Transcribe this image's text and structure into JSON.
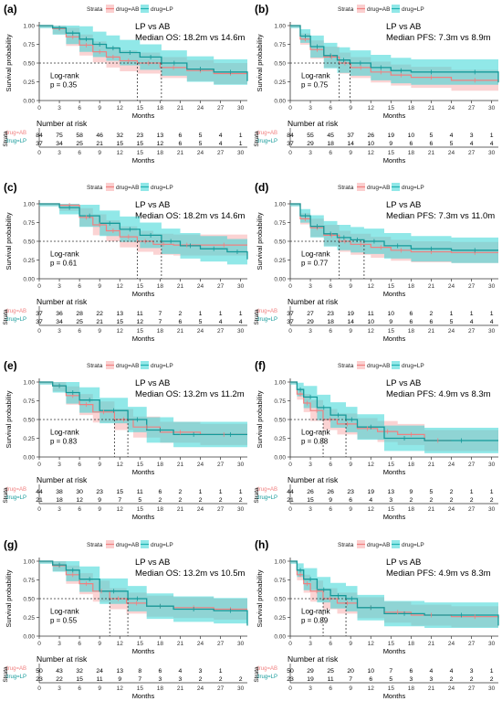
{
  "legend": {
    "title": "Strata",
    "series": [
      {
        "name": "drug=AB",
        "color": "#f08080"
      },
      {
        "name": "drug=LP",
        "color": "#1fb2b2"
      }
    ]
  },
  "colors": {
    "ab_line": "#f08080",
    "ab_band": "#f7a7a7",
    "lp_line": "#159a9a",
    "lp_band": "#36d5d5"
  },
  "common": {
    "ylabel": "Survival probability",
    "xlabel": "Months",
    "yticks": [
      "0.00",
      "0.25",
      "0.50",
      "0.75",
      "1.00"
    ],
    "xticks": [
      "0",
      "3",
      "6",
      "9",
      "12",
      "15",
      "18",
      "21",
      "24",
      "27",
      "30"
    ],
    "risk_title": "Number at risk",
    "risk_axis_label": "Strata",
    "risk_xticks": [
      "0",
      "3",
      "6",
      "9",
      "12",
      "15",
      "18",
      "21",
      "24",
      "27",
      "30"
    ],
    "risk_rows": [
      "drug=AB",
      "drug=LP"
    ]
  },
  "panels": [
    {
      "label": "(a)",
      "title": "LP vs AB",
      "median_text": "Median OS: 18.2m vs 14.6m",
      "logrank": "Log-rank",
      "p": "p = 0.35",
      "medians": [
        14.6,
        18.2
      ],
      "risk_ab": [
        "84",
        "75",
        "58",
        "46",
        "32",
        "23",
        "13",
        "6",
        "5",
        "4",
        "1"
      ],
      "risk_lp": [
        "37",
        "34",
        "25",
        "21",
        "15",
        "15",
        "12",
        "6",
        "5",
        "4",
        "1"
      ]
    },
    {
      "label": "(b)",
      "title": "LP vs AB",
      "median_text": "Median PFS: 7.3m vs 8.9m",
      "logrank": "Log-rank",
      "p": "p = 0.75",
      "medians": [
        7.3,
        8.9
      ],
      "risk_ab": [
        "84",
        "55",
        "45",
        "37",
        "26",
        "19",
        "10",
        "5",
        "4",
        "3",
        "1"
      ],
      "risk_lp": [
        "37",
        "29",
        "18",
        "14",
        "10",
        "9",
        "6",
        "6",
        "5",
        "4",
        "4"
      ]
    },
    {
      "label": "(c)",
      "title": "LP vs AB",
      "median_text": "Median OS: 18.2m vs 14.6m",
      "logrank": "Log-rank",
      "p": "p = 0.61",
      "medians": [
        14.6,
        18.2
      ],
      "risk_ab": [
        "37",
        "36",
        "28",
        "22",
        "13",
        "11",
        "7",
        "2",
        "1",
        "1",
        "1"
      ],
      "risk_lp": [
        "37",
        "34",
        "25",
        "21",
        "15",
        "12",
        "7",
        "6",
        "5",
        "4",
        "4"
      ]
    },
    {
      "label": "(d)",
      "title": "LP vs AB",
      "median_text": "Median PFS: 7.3m vs 11.0m",
      "logrank": "Log-rank",
      "p": "p = 0.77",
      "medians": [
        7.3,
        11.0
      ],
      "risk_ab": [
        "37",
        "27",
        "23",
        "19",
        "11",
        "10",
        "6",
        "2",
        "1",
        "1",
        "1"
      ],
      "risk_lp": [
        "37",
        "29",
        "18",
        "14",
        "10",
        "9",
        "6",
        "6",
        "5",
        "4",
        "4"
      ]
    },
    {
      "label": "(e)",
      "title": "LP vs AB",
      "median_text": "Median OS: 13.2m vs 11.2m",
      "logrank": "Log-rank",
      "p": "p = 0.83",
      "medians": [
        11.2,
        13.2
      ],
      "risk_ab": [
        "44",
        "38",
        "30",
        "23",
        "15",
        "11",
        "6",
        "2",
        "1",
        "1",
        "1"
      ],
      "risk_lp": [
        "21",
        "18",
        "12",
        "9",
        "7",
        "5",
        "2",
        "2",
        "2",
        "2",
        "2"
      ]
    },
    {
      "label": "(f)",
      "title": "LP vs AB",
      "median_text": "Median PFS: 4.9m vs 8.3m",
      "logrank": "Log-rank",
      "p": "p = 0.88",
      "medians": [
        4.9,
        8.3
      ],
      "risk_ab": [
        "44",
        "26",
        "26",
        "23",
        "19",
        "13",
        "9",
        "5",
        "2",
        "1",
        "1"
      ],
      "risk_lp": [
        "21",
        "15",
        "9",
        "6",
        "4",
        "3",
        "2",
        "2",
        "2",
        "2",
        "2"
      ]
    },
    {
      "label": "(g)",
      "title": "LP vs AB",
      "median_text": "Median OS: 13.2m vs 10.5m",
      "logrank": "Log-rank",
      "p": "p = 0.55",
      "medians": [
        10.5,
        13.2
      ],
      "risk_ab": [
        "50",
        "43",
        "32",
        "24",
        "13",
        "8",
        "6",
        "4",
        "3",
        "1",
        ""
      ],
      "risk_lp": [
        "23",
        "22",
        "15",
        "11",
        "9",
        "7",
        "3",
        "3",
        "2",
        "2",
        "2"
      ]
    },
    {
      "label": "(h)",
      "title": "LP vs AB",
      "median_text": "Median PFS: 4.9m vs 8.3m",
      "logrank": "Log-rank",
      "p": "p = 0.89",
      "medians": [
        4.9,
        8.3
      ],
      "risk_ab": [
        "50",
        "29",
        "25",
        "20",
        "10",
        "7",
        "6",
        "4",
        "4",
        "3",
        "1"
      ],
      "risk_lp": [
        "23",
        "19",
        "11",
        "7",
        "6",
        "5",
        "3",
        "3",
        "2",
        "2",
        "2"
      ]
    }
  ],
  "chart_data": [
    {
      "type": "line",
      "title": "LP vs AB",
      "subtitle": "Median OS: 18.2m vs 14.6m",
      "xlabel": "Months",
      "ylabel": "Survival probability",
      "xlim": [
        0,
        31
      ],
      "ylim": [
        0,
        1
      ],
      "series": [
        {
          "name": "drug=AB",
          "x": [
            0,
            2,
            4,
            6,
            8,
            10,
            12,
            14.6,
            18,
            22,
            26,
            31
          ],
          "y": [
            1,
            0.96,
            0.85,
            0.74,
            0.65,
            0.58,
            0.53,
            0.5,
            0.44,
            0.4,
            0.36,
            0.36
          ]
        },
        {
          "name": "drug=LP",
          "x": [
            0,
            2,
            4,
            6,
            8,
            10,
            12,
            15,
            18.2,
            22,
            26,
            31
          ],
          "y": [
            1,
            0.97,
            0.9,
            0.82,
            0.75,
            0.7,
            0.64,
            0.58,
            0.5,
            0.42,
            0.38,
            0.26
          ]
        }
      ]
    },
    {
      "type": "line",
      "title": "LP vs AB",
      "subtitle": "Median PFS: 7.3m vs 8.9m",
      "xlabel": "Months",
      "ylabel": "Survival probability",
      "xlim": [
        0,
        31
      ],
      "ylim": [
        0,
        1
      ],
      "series": [
        {
          "name": "drug=AB",
          "x": [
            0,
            1.5,
            3,
            5,
            7.3,
            9,
            12,
            15,
            18,
            24,
            31
          ],
          "y": [
            1,
            0.82,
            0.68,
            0.58,
            0.5,
            0.44,
            0.38,
            0.34,
            0.31,
            0.27,
            0.25
          ]
        },
        {
          "name": "drug=LP",
          "x": [
            0,
            1.5,
            3,
            5,
            7,
            8.9,
            12,
            15,
            18,
            24,
            31
          ],
          "y": [
            1,
            0.86,
            0.72,
            0.6,
            0.54,
            0.5,
            0.44,
            0.4,
            0.38,
            0.38,
            0.24
          ]
        }
      ]
    },
    {
      "type": "line",
      "title": "LP vs AB",
      "subtitle": "Median OS: 18.2m vs 14.6m",
      "xlabel": "Months",
      "ylabel": "Survival probability",
      "xlim": [
        0,
        31
      ],
      "ylim": [
        0,
        1
      ],
      "series": [
        {
          "name": "drug=AB",
          "x": [
            0,
            3,
            6,
            8,
            10,
            12,
            14.6,
            17,
            20,
            24,
            31
          ],
          "y": [
            1,
            0.98,
            0.82,
            0.72,
            0.64,
            0.56,
            0.5,
            0.46,
            0.45,
            0.45,
            0.45
          ]
        },
        {
          "name": "drug=LP",
          "x": [
            0,
            3,
            6,
            9,
            12,
            15,
            18.2,
            21,
            24,
            28,
            31
          ],
          "y": [
            1,
            0.95,
            0.84,
            0.74,
            0.66,
            0.58,
            0.5,
            0.44,
            0.4,
            0.36,
            0.26
          ]
        }
      ]
    },
    {
      "type": "line",
      "title": "LP vs AB",
      "subtitle": "Median PFS: 7.3m vs 11.0m",
      "xlabel": "Months",
      "ylabel": "Survival probability",
      "xlim": [
        0,
        31
      ],
      "ylim": [
        0,
        1
      ],
      "series": [
        {
          "name": "drug=AB",
          "x": [
            0,
            1.5,
            3,
            5,
            7.3,
            9,
            12,
            15,
            18,
            24,
            31
          ],
          "y": [
            1,
            0.8,
            0.68,
            0.58,
            0.5,
            0.46,
            0.42,
            0.38,
            0.36,
            0.35,
            0.35
          ]
        },
        {
          "name": "drug=LP",
          "x": [
            0,
            1.5,
            3,
            5,
            7,
            9,
            11,
            14,
            18,
            24,
            31
          ],
          "y": [
            1,
            0.84,
            0.7,
            0.6,
            0.55,
            0.52,
            0.5,
            0.44,
            0.4,
            0.38,
            0.38
          ]
        }
      ]
    },
    {
      "type": "line",
      "title": "LP vs AB",
      "subtitle": "Median OS: 13.2m vs 11.2m",
      "xlabel": "Months",
      "ylabel": "Survival probability",
      "xlim": [
        0,
        31
      ],
      "ylim": [
        0,
        1
      ],
      "series": [
        {
          "name": "drug=AB",
          "x": [
            0,
            2,
            4,
            6,
            8,
            11.2,
            14,
            18,
            24,
            31
          ],
          "y": [
            1,
            0.95,
            0.82,
            0.7,
            0.6,
            0.5,
            0.4,
            0.33,
            0.3,
            0.3
          ]
        },
        {
          "name": "drug=LP",
          "x": [
            0,
            2,
            4,
            6,
            9,
            13.2,
            16,
            20,
            26,
            31
          ],
          "y": [
            1,
            0.95,
            0.86,
            0.76,
            0.62,
            0.5,
            0.36,
            0.3,
            0.3,
            0.3
          ]
        }
      ]
    },
    {
      "type": "line",
      "title": "LP vs AB",
      "subtitle": "Median PFS: 4.9m vs 8.3m",
      "xlabel": "Months",
      "ylabel": "Survival probability",
      "xlim": [
        0,
        31
      ],
      "ylim": [
        0,
        1
      ],
      "series": [
        {
          "name": "drug=AB",
          "x": [
            0,
            1,
            2,
            3,
            4.9,
            7,
            10,
            13,
            16,
            20,
            24
          ],
          "y": [
            1,
            0.84,
            0.72,
            0.62,
            0.5,
            0.44,
            0.38,
            0.34,
            0.3,
            0.22,
            0.22
          ]
        },
        {
          "name": "drug=LP",
          "x": [
            0,
            1,
            2,
            4,
            6,
            8.3,
            10,
            14,
            20,
            31
          ],
          "y": [
            1,
            0.9,
            0.8,
            0.66,
            0.56,
            0.5,
            0.4,
            0.25,
            0.22,
            0.22
          ]
        }
      ]
    },
    {
      "type": "line",
      "title": "LP vs AB",
      "subtitle": "Median OS: 13.2m vs 10.5m",
      "xlabel": "Months",
      "ylabel": "Survival probability",
      "xlim": [
        0,
        31
      ],
      "ylim": [
        0,
        1
      ],
      "series": [
        {
          "name": "drug=AB",
          "x": [
            0,
            2,
            4,
            6,
            8,
            10.5,
            13,
            16,
            20,
            26,
            31
          ],
          "y": [
            1,
            0.94,
            0.82,
            0.7,
            0.6,
            0.5,
            0.44,
            0.4,
            0.38,
            0.36,
            0.36
          ]
        },
        {
          "name": "drug=LP",
          "x": [
            0,
            2,
            4,
            6,
            9,
            13.2,
            16,
            20,
            26,
            31
          ],
          "y": [
            1,
            0.95,
            0.88,
            0.76,
            0.6,
            0.5,
            0.4,
            0.36,
            0.34,
            0.14
          ]
        }
      ]
    },
    {
      "type": "line",
      "title": "LP vs AB",
      "subtitle": "Median PFS: 4.9m vs 8.3m",
      "xlabel": "Months",
      "ylabel": "Survival probability",
      "xlim": [
        0,
        31
      ],
      "ylim": [
        0,
        1
      ],
      "series": [
        {
          "name": "drug=AB",
          "x": [
            0,
            1,
            2,
            3,
            4.9,
            7,
            10,
            14,
            18,
            24,
            31
          ],
          "y": [
            1,
            0.82,
            0.7,
            0.6,
            0.5,
            0.44,
            0.38,
            0.32,
            0.28,
            0.26,
            0.24
          ]
        },
        {
          "name": "drug=LP",
          "x": [
            0,
            1,
            2,
            4,
            6,
            8.3,
            10,
            14,
            20,
            31
          ],
          "y": [
            1,
            0.88,
            0.76,
            0.62,
            0.54,
            0.5,
            0.38,
            0.3,
            0.28,
            0.14
          ]
        }
      ]
    }
  ]
}
